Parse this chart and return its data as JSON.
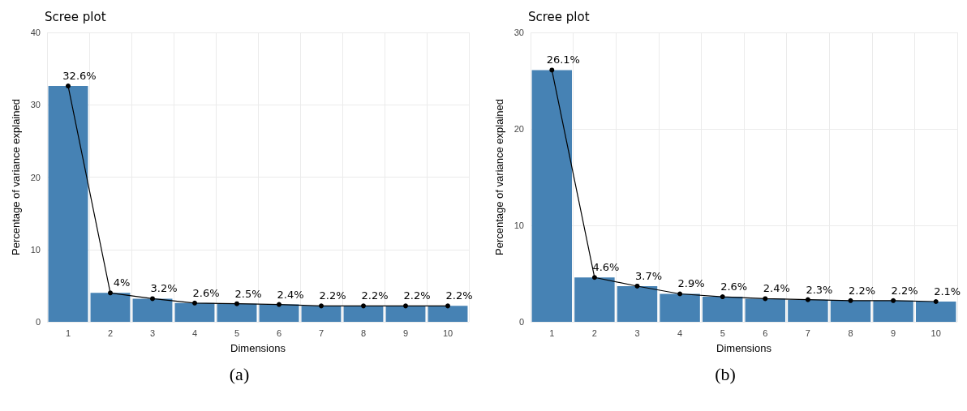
{
  "chart_data": [
    {
      "type": "bar",
      "title": "Scree plot",
      "xlabel": "Dimensions",
      "ylabel": "Percentage of variance explained",
      "categories": [
        "1",
        "2",
        "3",
        "4",
        "5",
        "6",
        "7",
        "8",
        "9",
        "10"
      ],
      "ylim": [
        0,
        40
      ],
      "yticks": [
        0,
        10,
        20,
        30,
        40
      ],
      "grid": true,
      "marker": "circle",
      "annotations": [
        "(a)"
      ],
      "series": [
        {
          "color": "#4682b4",
          "values": [
            32.6,
            4,
            3.2,
            2.6,
            2.5,
            2.4,
            2.2,
            2.2,
            2.2,
            2.2
          ]
        },
        {
          "type": "line",
          "color": "#000000",
          "values": [
            32.6,
            4,
            3.2,
            2.6,
            2.5,
            2.4,
            2.2,
            2.2,
            2.2,
            2.2
          ],
          "value_labels": [
            "32.6%",
            "4%",
            "3.2%",
            "2.6%",
            "2.5%",
            "2.4%",
            "2.2%",
            "2.2%",
            "2.2%",
            "2.2%"
          ]
        }
      ]
    },
    {
      "type": "bar",
      "title": "Scree plot",
      "xlabel": "Dimensions",
      "ylabel": "Percentage of variance explained",
      "categories": [
        "1",
        "2",
        "3",
        "4",
        "5",
        "6",
        "7",
        "8",
        "9",
        "10"
      ],
      "ylim": [
        0,
        30
      ],
      "yticks": [
        0,
        10,
        20,
        30
      ],
      "grid": true,
      "marker": "circle",
      "annotations": [
        "(b)"
      ],
      "series": [
        {
          "color": "#4682b4",
          "values": [
            26.1,
            4.6,
            3.7,
            2.9,
            2.6,
            2.4,
            2.3,
            2.2,
            2.2,
            2.1
          ]
        },
        {
          "type": "line",
          "color": "#000000",
          "values": [
            26.1,
            4.6,
            3.7,
            2.9,
            2.6,
            2.4,
            2.3,
            2.2,
            2.2,
            2.1
          ],
          "value_labels": [
            "26.1%",
            "4.6%",
            "3.7%",
            "2.9%",
            "2.6%",
            "2.4%",
            "2.3%",
            "2.2%",
            "2.2%",
            "2.1%"
          ]
        }
      ]
    }
  ]
}
